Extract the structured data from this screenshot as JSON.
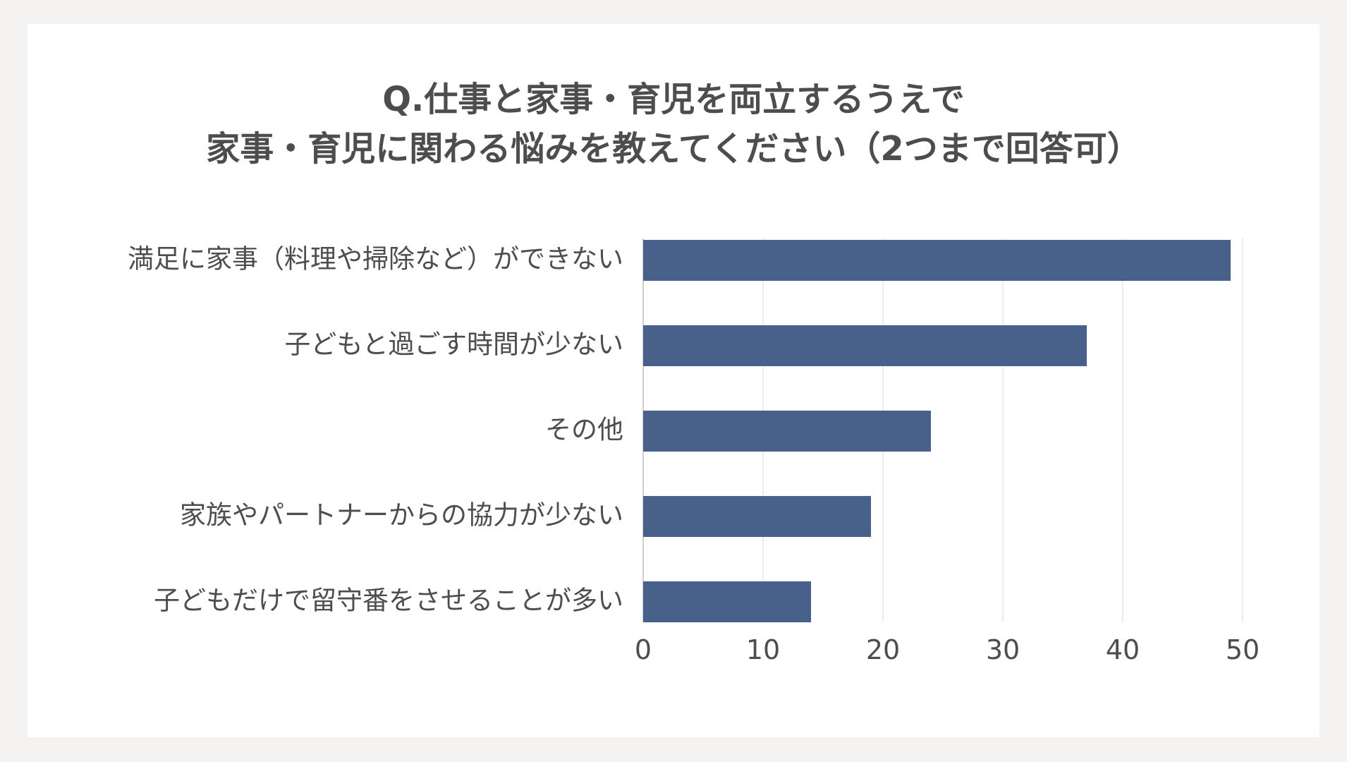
{
  "colors": {
    "page_background": "#f4f3f1",
    "card_background": "#ffffff",
    "bar": "#47618a",
    "text": "#4d4d4d",
    "grid": "#e6e6e6",
    "axis": "#bfbfbf"
  },
  "chart_data": {
    "type": "bar",
    "orientation": "horizontal",
    "title_lines": [
      "Q.仕事と家事・育児を両立するうえで",
      "家事・育児に関わる悩みを教えてください（2つまで回答可）"
    ],
    "categories": [
      "満足に家事（料理や掃除など）ができない",
      "子どもと過ごす時間が少ない",
      "その他",
      "家族やパートナーからの協力が少ない",
      "子どもだけで留守番をさせることが多い"
    ],
    "values": [
      49,
      37,
      24,
      19,
      14
    ],
    "xlim": [
      0,
      50
    ],
    "xticks": [
      0,
      10,
      20,
      30,
      40,
      50
    ],
    "xlabel": "",
    "ylabel": "",
    "grid": "vertical",
    "legend": "none"
  }
}
